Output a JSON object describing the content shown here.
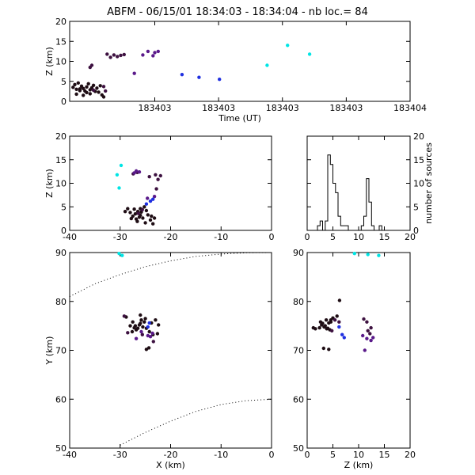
{
  "title": "ABFM - 06/15/01 18:34:03 - 18:34:04 - nb loc.=      84",
  "colors": {
    "early": "#1e0d14",
    "mid1": "#3d1140",
    "mid2": "#5a1a8a",
    "mid3": "#2030e0",
    "late": "#00e5e5"
  },
  "chart_data": [
    {
      "name": "z-vs-time",
      "type": "scatter",
      "xlabel": "Time (UT)",
      "ylabel": "Z (km)",
      "xlim": [
        0,
        1
      ],
      "ylim": [
        0,
        20
      ],
      "xticks": [
        0.25,
        0.4375,
        0.625,
        0.8125,
        1.0
      ],
      "xticklabels": [
        "183403",
        "183403",
        "183403",
        "183403",
        "183404"
      ],
      "yticks": [
        0,
        5,
        10,
        15,
        20
      ],
      "points": [
        [
          0.01,
          3.5,
          "early"
        ],
        [
          0.015,
          4.2,
          "early"
        ],
        [
          0.02,
          3.0,
          "early"
        ],
        [
          0.025,
          4.6,
          "early"
        ],
        [
          0.03,
          2.7,
          "early"
        ],
        [
          0.035,
          3.8,
          "early"
        ],
        [
          0.04,
          3.2,
          "early"
        ],
        [
          0.045,
          2.6,
          "early"
        ],
        [
          0.05,
          3.6,
          "early"
        ],
        [
          0.055,
          4.4,
          "early"
        ],
        [
          0.06,
          2.9,
          "early"
        ],
        [
          0.065,
          3.4,
          "early"
        ],
        [
          0.07,
          4.0,
          "early"
        ],
        [
          0.075,
          2.5,
          "early"
        ],
        [
          0.08,
          3.3,
          "early"
        ],
        [
          0.09,
          3.9,
          "early"
        ],
        [
          0.095,
          1.6,
          "early"
        ],
        [
          0.1,
          1.1,
          "early"
        ],
        [
          0.02,
          1.8,
          "early"
        ],
        [
          0.04,
          1.5,
          "early"
        ],
        [
          0.06,
          1.9,
          "early"
        ],
        [
          0.085,
          2.3,
          "early"
        ],
        [
          0.03,
          3.1,
          "early"
        ],
        [
          0.05,
          2.2,
          "early"
        ],
        [
          0.07,
          2.8,
          "mid1"
        ],
        [
          0.1,
          3.7,
          "mid1"
        ],
        [
          0.105,
          2.6,
          "mid1"
        ],
        [
          0.06,
          8.5,
          "mid1"
        ],
        [
          0.065,
          9.0,
          "mid1"
        ],
        [
          0.11,
          11.8,
          "mid1"
        ],
        [
          0.12,
          11.0,
          "mid1"
        ],
        [
          0.13,
          11.6,
          "mid1"
        ],
        [
          0.14,
          11.2,
          "mid1"
        ],
        [
          0.15,
          11.5,
          "mid1"
        ],
        [
          0.16,
          11.7,
          "mid1"
        ],
        [
          0.19,
          7.0,
          "mid2"
        ],
        [
          0.215,
          11.6,
          "mid2"
        ],
        [
          0.23,
          12.5,
          "mid2"
        ],
        [
          0.25,
          12.2,
          "mid2"
        ],
        [
          0.26,
          12.5,
          "mid2"
        ],
        [
          0.245,
          11.4,
          "mid2"
        ],
        [
          0.33,
          6.7,
          "mid3"
        ],
        [
          0.38,
          6.0,
          "mid3"
        ],
        [
          0.44,
          5.5,
          "mid3"
        ],
        [
          0.58,
          9.0,
          "late"
        ],
        [
          0.64,
          14.0,
          "late"
        ],
        [
          0.705,
          11.8,
          "late"
        ]
      ]
    },
    {
      "name": "z-vs-x",
      "type": "scatter",
      "xlabel": "",
      "ylabel": "Z (km)",
      "xlim": [
        -40,
        0
      ],
      "ylim": [
        0,
        20
      ],
      "xticks": [
        -40,
        -30,
        -20,
        -10,
        0
      ],
      "yticks": [
        0,
        5,
        10,
        15,
        20
      ],
      "points": [
        [
          -27,
          3.5,
          "early"
        ],
        [
          -26.5,
          4.0,
          "early"
        ],
        [
          -27.5,
          3.0,
          "early"
        ],
        [
          -26,
          3.2,
          "early"
        ],
        [
          -25.5,
          2.6,
          "early"
        ],
        [
          -28,
          3.8,
          "early"
        ],
        [
          -26.8,
          2.4,
          "early"
        ],
        [
          -25.8,
          3.9,
          "early"
        ],
        [
          -27.2,
          4.5,
          "early"
        ],
        [
          -26.2,
          2.8,
          "early"
        ],
        [
          -24.5,
          3.3,
          "early"
        ],
        [
          -24,
          2.2,
          "early"
        ],
        [
          -23.5,
          1.4,
          "early"
        ],
        [
          -28.5,
          4.6,
          "early"
        ],
        [
          -26.6,
          1.9,
          "early"
        ],
        [
          -25,
          1.6,
          "early"
        ],
        [
          -24.8,
          4.2,
          "early"
        ],
        [
          -27.8,
          2.5,
          "early"
        ],
        [
          -26,
          4.6,
          "early"
        ],
        [
          -25.2,
          5.0,
          "early"
        ],
        [
          -23.8,
          3.0,
          "early"
        ],
        [
          -29,
          4.0,
          "early"
        ],
        [
          -23.2,
          2.6,
          "early"
        ],
        [
          -26.4,
          3.6,
          "mid1"
        ],
        [
          -25.6,
          4.4,
          "mid1"
        ],
        [
          -27.4,
          12.0,
          "mid1"
        ],
        [
          -26.6,
          12.3,
          "mid1"
        ],
        [
          -23,
          11.8,
          "mid1"
        ],
        [
          -22,
          11.6,
          "mid1"
        ],
        [
          -22.5,
          10.8,
          "mid1"
        ],
        [
          -24.2,
          11.4,
          "mid1"
        ],
        [
          -22.8,
          8.8,
          "mid1"
        ],
        [
          -23.2,
          7.2,
          "mid2"
        ],
        [
          -26.8,
          12.6,
          "mid2"
        ],
        [
          -27.2,
          12.2,
          "mid2"
        ],
        [
          -26.2,
          12.4,
          "mid2"
        ],
        [
          -24.6,
          6.8,
          "mid2"
        ],
        [
          -24,
          6.2,
          "mid3"
        ],
        [
          -24.8,
          5.6,
          "mid3"
        ],
        [
          -23.5,
          6.6,
          "mid3"
        ],
        [
          -30.2,
          9.0,
          "late"
        ],
        [
          -29.8,
          13.8,
          "late"
        ],
        [
          -30.6,
          11.8,
          "late"
        ]
      ]
    },
    {
      "name": "source-histogram",
      "type": "bar",
      "xlabel": "",
      "ylabel": "number of sources",
      "xlim": [
        0,
        20
      ],
      "ylim": [
        0,
        20
      ],
      "xticks": [
        0,
        5,
        10,
        15,
        20
      ],
      "yticks": [
        0,
        5,
        10,
        15,
        20
      ],
      "bin_width": 0.5,
      "bin_start": 0,
      "values": [
        0,
        0,
        0,
        0,
        1,
        2,
        0,
        2,
        16,
        14,
        10,
        8,
        3,
        1,
        1,
        1,
        0,
        0,
        0,
        0,
        0,
        1,
        3,
        11,
        6,
        1,
        0,
        0,
        1,
        0,
        0,
        0,
        0,
        0,
        0,
        0,
        0,
        0,
        0,
        0
      ]
    },
    {
      "name": "y-vs-x",
      "type": "scatter",
      "xlabel": "X (km)",
      "ylabel": "Y (km)",
      "xlim": [
        -40,
        0
      ],
      "ylim": [
        50,
        90
      ],
      "xticks": [
        -40,
        -30,
        -20,
        -10,
        0
      ],
      "yticks": [
        50,
        60,
        70,
        80,
        90
      ],
      "range_rings": [
        [
          [
            -40,
            81
          ],
          [
            -35,
            83.6
          ],
          [
            -30,
            85.5
          ],
          [
            -25,
            87.1
          ],
          [
            -20,
            88.3
          ],
          [
            -15,
            89.2
          ],
          [
            -10,
            89.7
          ],
          [
            -5,
            89.95
          ],
          [
            0,
            90
          ]
        ],
        [
          [
            -30,
            50.6
          ],
          [
            -25,
            53.2
          ],
          [
            -20,
            55.5
          ],
          [
            -15,
            57.5
          ],
          [
            -10,
            58.9
          ],
          [
            -5,
            59.7
          ],
          [
            0,
            60
          ]
        ]
      ],
      "points": [
        [
          -27,
          75,
          "early"
        ],
        [
          -26.5,
          74.5,
          "early"
        ],
        [
          -26,
          75.5,
          "early"
        ],
        [
          -25.5,
          74.8,
          "early"
        ],
        [
          -27.5,
          75.8,
          "early"
        ],
        [
          -26.8,
          74.2,
          "early"
        ],
        [
          -25.8,
          76.2,
          "early"
        ],
        [
          -26.2,
          75.2,
          "early"
        ],
        [
          -27.2,
          74.6,
          "early"
        ],
        [
          -25.2,
          75.8,
          "early"
        ],
        [
          -24.8,
          74.5,
          "early"
        ],
        [
          -28,
          75,
          "early"
        ],
        [
          -25,
          76.5,
          "early"
        ],
        [
          -24.2,
          73.8,
          "early"
        ],
        [
          -23.5,
          73.2,
          "early"
        ],
        [
          -22.6,
          73.4,
          "early"
        ],
        [
          -23,
          76.2,
          "early"
        ],
        [
          -22.4,
          75.2,
          "early"
        ],
        [
          -23.8,
          75.6,
          "early"
        ],
        [
          -28.8,
          76.8,
          "early"
        ],
        [
          -26,
          77.2,
          "early"
        ],
        [
          -24.8,
          70.2,
          "early"
        ],
        [
          -24.3,
          70.5,
          "early"
        ],
        [
          -27.6,
          73.8,
          "early"
        ],
        [
          -25.6,
          73.2,
          "mid1"
        ],
        [
          -28.5,
          73.6,
          "mid1"
        ],
        [
          -29.2,
          77,
          "mid1"
        ],
        [
          -23.4,
          71.8,
          "mid1"
        ],
        [
          -24,
          72.8,
          "mid2"
        ],
        [
          -23.6,
          73.5,
          "mid2"
        ],
        [
          -26.8,
          72.4,
          "mid2"
        ],
        [
          -24.5,
          73,
          "mid2"
        ],
        [
          -25.8,
          73.8,
          "mid2"
        ],
        [
          -24.5,
          74.8,
          "mid3"
        ],
        [
          -24.2,
          75.6,
          "mid3"
        ],
        [
          -30.2,
          89.8,
          "late"
        ],
        [
          -29.6,
          89.4,
          "late"
        ]
      ]
    },
    {
      "name": "y-vs-z",
      "type": "scatter",
      "xlabel": "Z (km)",
      "ylabel": "",
      "xlim": [
        0,
        20
      ],
      "ylim": [
        50,
        90
      ],
      "xticks": [
        0,
        5,
        10,
        15,
        20
      ],
      "yticks": [
        50,
        60,
        70,
        80,
        90
      ],
      "points": [
        [
          3.5,
          75,
          "early"
        ],
        [
          4,
          74.5,
          "early"
        ],
        [
          3,
          75.5,
          "early"
        ],
        [
          3.3,
          74.8,
          "early"
        ],
        [
          2.6,
          75.8,
          "early"
        ],
        [
          4.4,
          74.2,
          "early"
        ],
        [
          3.7,
          76.2,
          "early"
        ],
        [
          2.4,
          74.6,
          "early"
        ],
        [
          4.6,
          75.8,
          "early"
        ],
        [
          2.8,
          75.2,
          "early"
        ],
        [
          3.8,
          74.4,
          "early"
        ],
        [
          4.2,
          75.6,
          "early"
        ],
        [
          1.6,
          74.4,
          "early"
        ],
        [
          1.2,
          74.6,
          "early"
        ],
        [
          5,
          76.6,
          "early"
        ],
        [
          5.8,
          77,
          "early"
        ],
        [
          6.3,
          80.2,
          "early"
        ],
        [
          3.2,
          70.4,
          "early"
        ],
        [
          4.2,
          70.2,
          "early"
        ],
        [
          4.6,
          76.2,
          "early"
        ],
        [
          5.4,
          76.2,
          "mid1"
        ],
        [
          6.2,
          75.8,
          "mid1"
        ],
        [
          4.8,
          74,
          "mid1"
        ],
        [
          11,
          76.4,
          "mid1"
        ],
        [
          11.6,
          75.8,
          "mid1"
        ],
        [
          12.4,
          74.6,
          "mid1"
        ],
        [
          11.8,
          74,
          "mid1"
        ],
        [
          12.2,
          73.4,
          "mid1"
        ],
        [
          10.8,
          73,
          "mid2"
        ],
        [
          11.6,
          72.4,
          "mid2"
        ],
        [
          12.8,
          72.6,
          "mid2"
        ],
        [
          12.4,
          72,
          "mid2"
        ],
        [
          11.2,
          70,
          "mid2"
        ],
        [
          6.8,
          73.2,
          "mid3"
        ],
        [
          7.2,
          72.6,
          "mid3"
        ],
        [
          6.2,
          74.8,
          "mid3"
        ],
        [
          9.2,
          89.8,
          "late"
        ],
        [
          11.8,
          89.6,
          "late"
        ],
        [
          13.9,
          89.4,
          "late"
        ]
      ]
    }
  ]
}
